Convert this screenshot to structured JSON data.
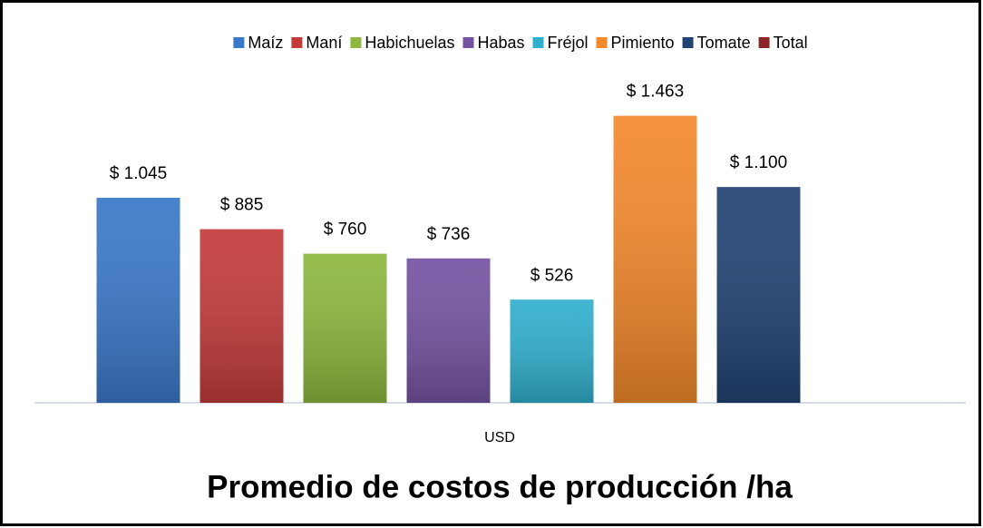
{
  "chart_data": {
    "type": "bar",
    "title": "Promedio de costos de producción /ha",
    "categories": [
      "USD"
    ],
    "series": [
      {
        "name": "Maíz",
        "color": "#3a78c9",
        "values": [
          1045
        ],
        "value_labels": [
          "$ 1.045"
        ]
      },
      {
        "name": "Maní",
        "color": "#c33b3a",
        "values": [
          885
        ],
        "value_labels": [
          "$ 885"
        ]
      },
      {
        "name": "Habichuelas",
        "color": "#8db83e",
        "values": [
          760
        ],
        "value_labels": [
          "$ 760"
        ]
      },
      {
        "name": "Habas",
        "color": "#7553a2",
        "values": [
          736
        ],
        "value_labels": [
          "$ 736"
        ]
      },
      {
        "name": "Fréjol",
        "color": "#30afcd",
        "values": [
          526
        ],
        "value_labels": [
          "$ 526"
        ]
      },
      {
        "name": "Pimiento",
        "color": "#f4892c",
        "values": [
          1463
        ],
        "value_labels": [
          "$ 1.463"
        ]
      },
      {
        "name": "Tomate",
        "color": "#214373",
        "values": [
          1100
        ],
        "value_labels": [
          "$ 1.100"
        ]
      },
      {
        "name": "Total",
        "color": "#8c2626",
        "values": [
          null
        ]
      }
    ],
    "ylim": [
      0,
      1600
    ],
    "legend": "top"
  }
}
